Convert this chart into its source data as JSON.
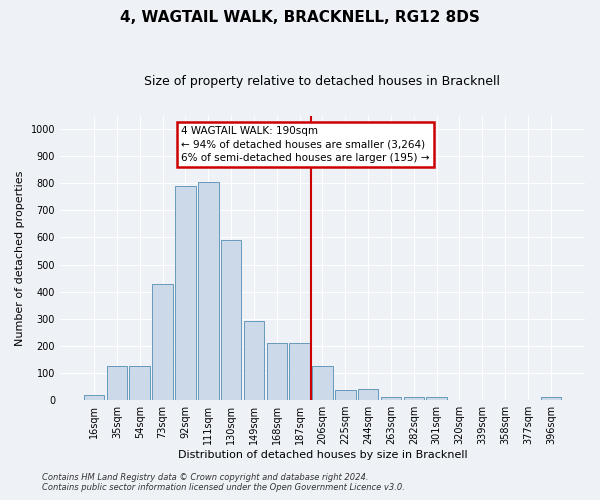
{
  "title": "4, WAGTAIL WALK, BRACKNELL, RG12 8DS",
  "subtitle": "Size of property relative to detached houses in Bracknell",
  "xlabel": "Distribution of detached houses by size in Bracknell",
  "ylabel": "Number of detached properties",
  "bar_labels": [
    "16sqm",
    "35sqm",
    "54sqm",
    "73sqm",
    "92sqm",
    "111sqm",
    "130sqm",
    "149sqm",
    "168sqm",
    "187sqm",
    "206sqm",
    "225sqm",
    "244sqm",
    "263sqm",
    "282sqm",
    "301sqm",
    "320sqm",
    "339sqm",
    "358sqm",
    "377sqm",
    "396sqm"
  ],
  "bar_values": [
    18,
    125,
    125,
    430,
    790,
    805,
    590,
    290,
    212,
    212,
    125,
    38,
    40,
    12,
    10,
    10,
    0,
    0,
    0,
    0,
    10
  ],
  "bar_color": "#ccd9e8",
  "bar_edge_color": "#6699bb",
  "vline_x_index": 9,
  "vline_color": "#cc0000",
  "annotation_text": "4 WAGTAIL WALK: 190sqm\n← 94% of detached houses are smaller (3,264)\n6% of semi-detached houses are larger (195) →",
  "annotation_box_color": "#cc0000",
  "annotation_bg": "#ffffff",
  "ylim": [
    0,
    1050
  ],
  "yticks": [
    0,
    100,
    200,
    300,
    400,
    500,
    600,
    700,
    800,
    900,
    1000
  ],
  "footer_line1": "Contains HM Land Registry data © Crown copyright and database right 2024.",
  "footer_line2": "Contains public sector information licensed under the Open Government Licence v3.0.",
  "background_color": "#eef2f7",
  "grid_color": "#ffffff",
  "title_fontsize": 11,
  "subtitle_fontsize": 9,
  "axis_label_fontsize": 8,
  "tick_fontsize": 7,
  "footer_fontsize": 6,
  "annotation_fontsize": 7.5
}
